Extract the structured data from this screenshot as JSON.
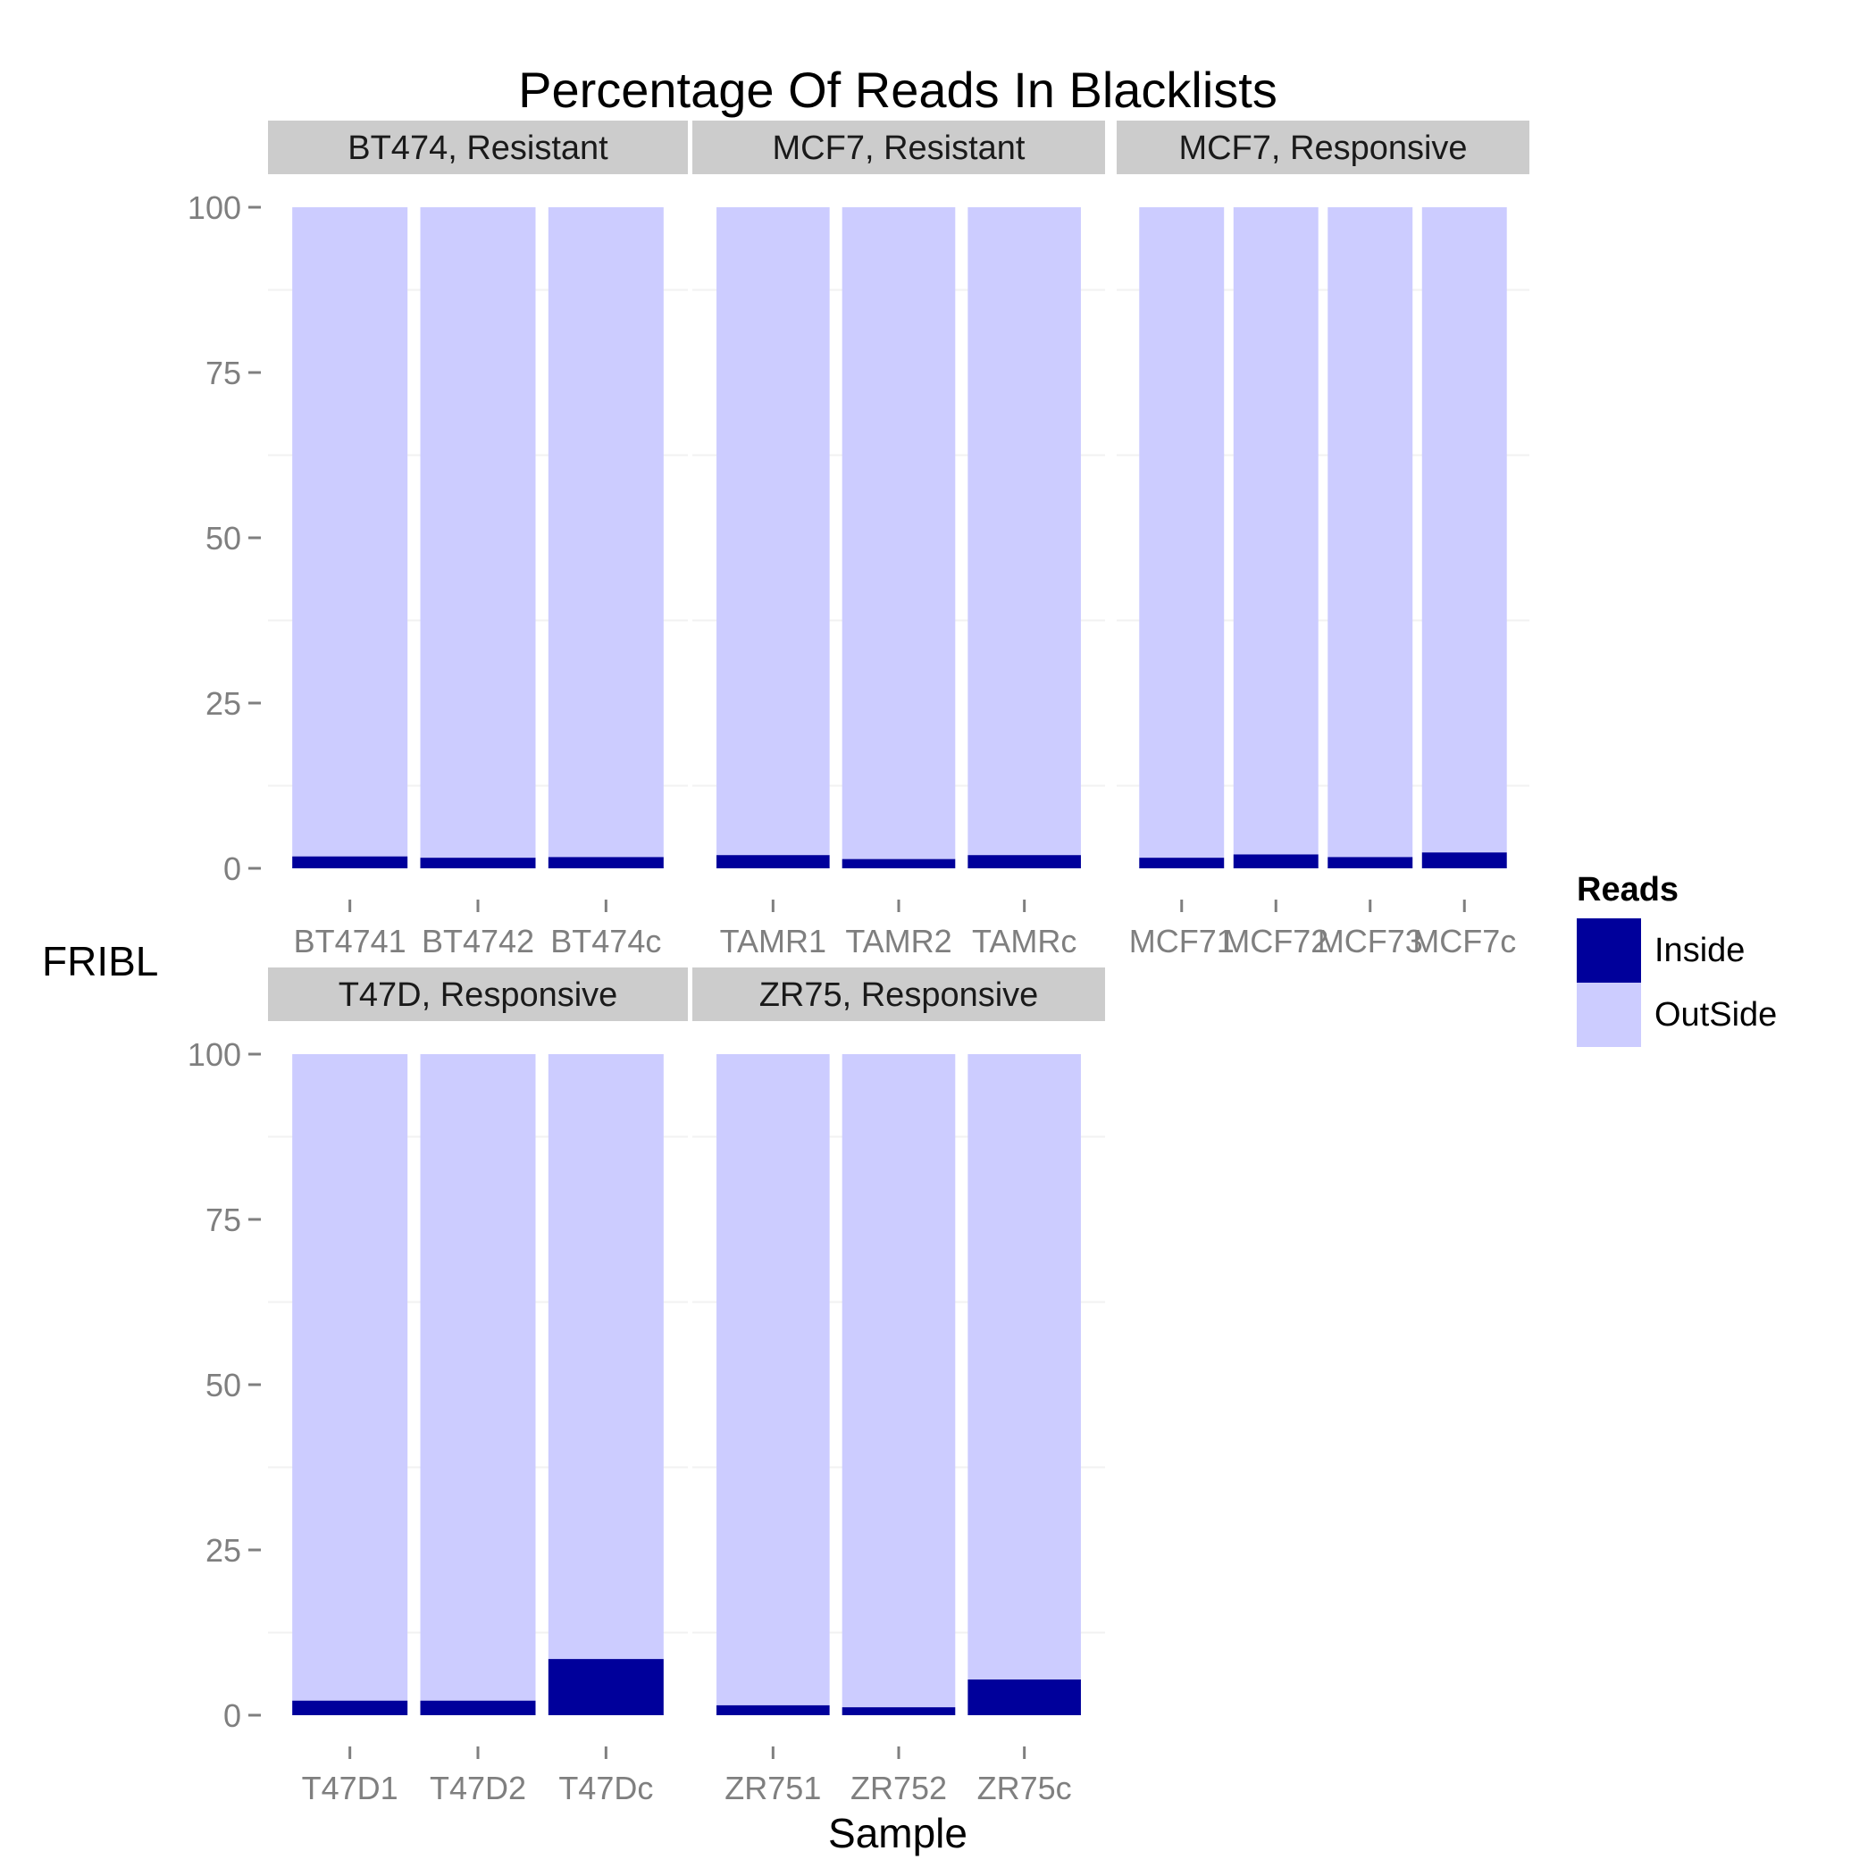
{
  "chart_data": {
    "type": "bar",
    "stacked": true,
    "title": "Percentage Of Reads In Blacklists",
    "xlabel": "Sample",
    "ylabel": "FRIBL",
    "ylim": [
      0,
      100
    ],
    "yticks": [
      0,
      25,
      50,
      75,
      100
    ],
    "grid": true,
    "legend": {
      "title": "Reads",
      "position": "right",
      "entries": [
        {
          "name": "Inside",
          "color": "#00009B"
        },
        {
          "name": "OutSide",
          "color": "#CCCCFF"
        }
      ]
    },
    "series_colors": {
      "inside": "#00009B",
      "outside": "#CCCCFF"
    },
    "facets": [
      {
        "label": "BT474, Resistant",
        "categories": [
          "BT4741",
          "BT4742",
          "BT474c"
        ],
        "inside": [
          1.8,
          1.6,
          1.7
        ],
        "outside": [
          98.2,
          98.4,
          98.3
        ]
      },
      {
        "label": "MCF7, Resistant",
        "categories": [
          "TAMR1",
          "TAMR2",
          "TAMRc"
        ],
        "inside": [
          2.0,
          1.4,
          2.0
        ],
        "outside": [
          98.0,
          98.6,
          98.0
        ]
      },
      {
        "label": "MCF7, Responsive",
        "categories": [
          "MCF71",
          "MCF72",
          "MCF73",
          "MCF7c"
        ],
        "inside": [
          1.6,
          2.1,
          1.7,
          2.4
        ],
        "outside": [
          98.4,
          97.9,
          98.3,
          97.6
        ]
      },
      {
        "label": "T47D, Responsive",
        "categories": [
          "T47D1",
          "T47D2",
          "T47Dc"
        ],
        "inside": [
          2.2,
          2.2,
          8.5
        ],
        "outside": [
          97.8,
          97.8,
          91.5
        ]
      },
      {
        "label": "ZR75, Responsive",
        "categories": [
          "ZR751",
          "ZR752",
          "ZR75c"
        ],
        "inside": [
          1.5,
          1.2,
          5.4
        ],
        "outside": [
          98.5,
          98.8,
          94.6
        ]
      }
    ]
  }
}
